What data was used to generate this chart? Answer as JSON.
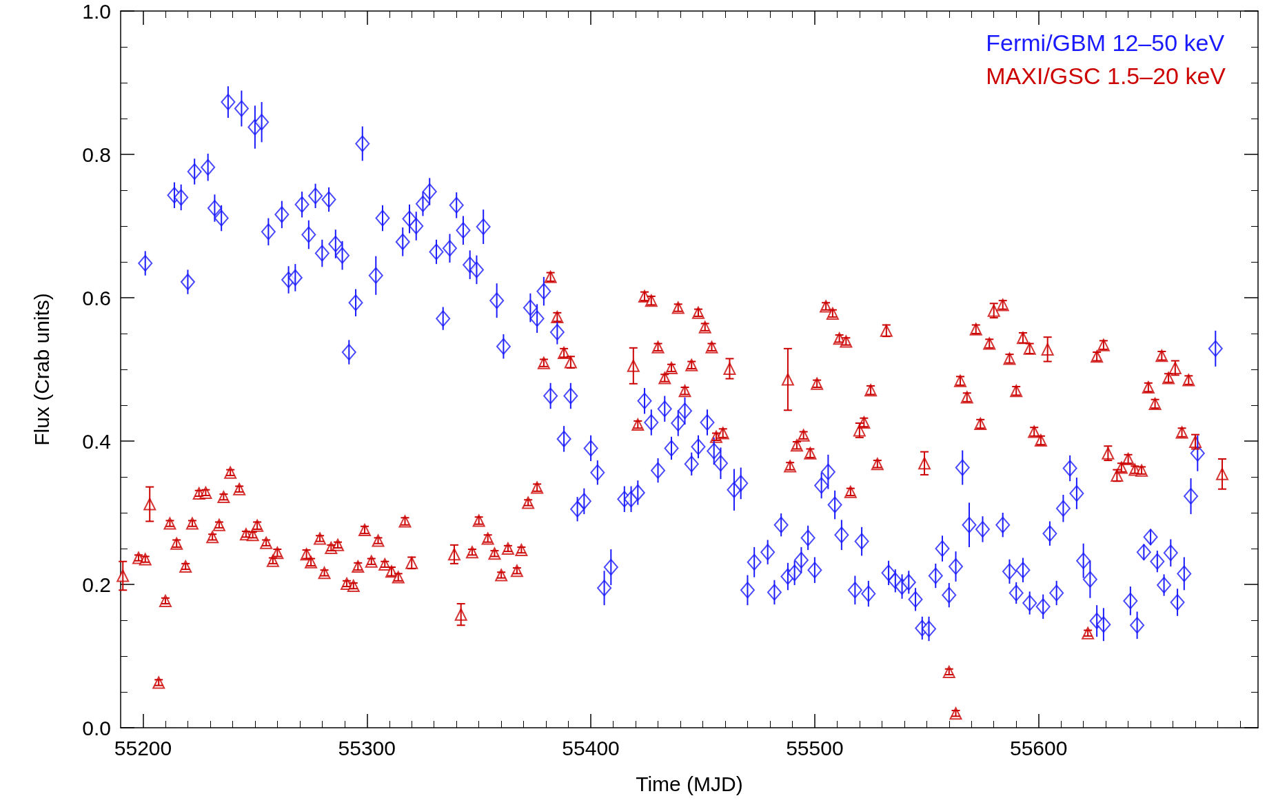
{
  "chart_data": {
    "type": "scatter",
    "xlabel": "Time (MJD)",
    "ylabel": "Flux (Crab units)",
    "xlim": [
      55190,
      55698
    ],
    "xticks": [
      55200,
      55300,
      55400,
      55500,
      55600
    ],
    "ylim": [
      0,
      1
    ],
    "yticks": [
      {
        "value": 0,
        "label": "0.0"
      },
      {
        "value": 0.2,
        "label": "0.2"
      },
      {
        "value": 0.4,
        "label": "0.4"
      },
      {
        "value": 0.6,
        "label": "0.6"
      },
      {
        "value": 0.8,
        "label": "0.8"
      },
      {
        "value": 1,
        "label": "1.0"
      }
    ],
    "grid": false,
    "legend": "top right",
    "series": [
      {
        "name": "Fermi/GBM 12–50 keV",
        "color": "#1a1aff",
        "marker": "diamond",
        "x": [
          55201,
          55214,
          55217,
          55220,
          55223,
          55229,
          55232,
          55235,
          55238,
          55244,
          55250,
          55253,
          55256,
          55262,
          55265,
          55268,
          55271,
          55274,
          55277,
          55280,
          55283,
          55286,
          55289,
          55292,
          55295,
          55298,
          55304,
          55307,
          55316,
          55319,
          55322,
          55325,
          55328,
          55331,
          55334,
          55337,
          55340,
          55343,
          55346,
          55349,
          55352,
          55358,
          55361,
          55373,
          55376,
          55379,
          55382,
          55385,
          55388,
          55391,
          55394,
          55397,
          55400,
          55403,
          55406,
          55409,
          55415,
          55418,
          55421,
          55424,
          55427,
          55430,
          55433,
          55436,
          55439,
          55442,
          55445,
          55448,
          55452,
          55455,
          55458,
          55464,
          55467,
          55470,
          55473,
          55479,
          55482,
          55485,
          55488,
          55491,
          55494,
          55497,
          55500,
          55503,
          55506,
          55509,
          55512,
          55518,
          55521,
          55524,
          55533,
          55536,
          55539,
          55542,
          55545,
          55548,
          55551,
          55554,
          55557,
          55560,
          55563,
          55566,
          55569,
          55575,
          55584,
          55587,
          55590,
          55593,
          55596,
          55602,
          55605,
          55608,
          55611,
          55614,
          55617,
          55620,
          55623,
          55626,
          55629,
          55641,
          55644,
          55647,
          55650,
          55653,
          55656,
          55659,
          55662,
          55665,
          55668,
          55671,
          55679
        ],
        "values": [
          0.648,
          0.743,
          0.74,
          0.622,
          0.776,
          0.782,
          0.725,
          0.711,
          0.873,
          0.864,
          0.838,
          0.845,
          0.692,
          0.716,
          0.625,
          0.628,
          0.73,
          0.688,
          0.742,
          0.662,
          0.737,
          0.675,
          0.659,
          0.524,
          0.593,
          0.815,
          0.631,
          0.711,
          0.678,
          0.71,
          0.7,
          0.731,
          0.748,
          0.664,
          0.571,
          0.669,
          0.729,
          0.694,
          0.646,
          0.639,
          0.699,
          0.596,
          0.532,
          0.586,
          0.571,
          0.609,
          0.463,
          0.552,
          0.403,
          0.463,
          0.305,
          0.316,
          0.39,
          0.356,
          0.195,
          0.224,
          0.319,
          0.319,
          0.328,
          0.456,
          0.426,
          0.359,
          0.445,
          0.39,
          0.425,
          0.442,
          0.368,
          0.392,
          0.426,
          0.386,
          0.369,
          0.332,
          0.341,
          0.192,
          0.231,
          0.245,
          0.189,
          0.283,
          0.211,
          0.216,
          0.234,
          0.265,
          0.22,
          0.338,
          0.357,
          0.311,
          0.269,
          0.192,
          0.26,
          0.187,
          0.216,
          0.205,
          0.197,
          0.203,
          0.179,
          0.139,
          0.138,
          0.212,
          0.25,
          0.185,
          0.225,
          0.363,
          0.283,
          0.277,
          0.283,
          0.218,
          0.188,
          0.22,
          0.174,
          0.169,
          0.271,
          0.188,
          0.306,
          0.362,
          0.327,
          0.233,
          0.207,
          0.149,
          0.144,
          0.177,
          0.143,
          0.245,
          0.266,
          0.232,
          0.199,
          0.244,
          0.175,
          0.215,
          0.323,
          0.383,
          0.529
        ],
        "errors": [
          0.017,
          0.018,
          0.018,
          0.017,
          0.018,
          0.019,
          0.019,
          0.018,
          0.022,
          0.025,
          0.03,
          0.028,
          0.019,
          0.019,
          0.019,
          0.019,
          0.018,
          0.02,
          0.017,
          0.019,
          0.017,
          0.02,
          0.02,
          0.017,
          0.019,
          0.024,
          0.027,
          0.018,
          0.02,
          0.02,
          0.02,
          0.017,
          0.019,
          0.017,
          0.016,
          0.02,
          0.018,
          0.02,
          0.02,
          0.02,
          0.024,
          0.024,
          0.017,
          0.02,
          0.02,
          0.02,
          0.018,
          0.017,
          0.018,
          0.018,
          0.017,
          0.018,
          0.018,
          0.017,
          0.024,
          0.025,
          0.018,
          0.018,
          0.017,
          0.018,
          0.018,
          0.017,
          0.018,
          0.016,
          0.018,
          0.019,
          0.016,
          0.016,
          0.018,
          0.019,
          0.022,
          0.029,
          0.022,
          0.021,
          0.021,
          0.017,
          0.017,
          0.016,
          0.019,
          0.017,
          0.018,
          0.017,
          0.018,
          0.018,
          0.024,
          0.02,
          0.021,
          0.02,
          0.02,
          0.018,
          0.017,
          0.016,
          0.017,
          0.016,
          0.016,
          0.016,
          0.017,
          0.017,
          0.018,
          0.017,
          0.021,
          0.024,
          0.031,
          0.018,
          0.017,
          0.017,
          0.015,
          0.017,
          0.016,
          0.017,
          0.017,
          0.017,
          0.019,
          0.018,
          0.022,
          0.024,
          0.026,
          0.022,
          0.023,
          0.02,
          0.019,
          0.011,
          0.011,
          0.015,
          0.015,
          0.019,
          0.019,
          0.023,
          0.025,
          0.025,
          0.025
        ]
      },
      {
        "name": "MAXI/GSC 1.5–20 keV",
        "color": "#cc0000",
        "marker": "triangle",
        "x": [
          55191,
          55198,
          55201,
          55203,
          55207,
          55210,
          55212,
          55215,
          55219,
          55222,
          55225,
          55228,
          55231,
          55234,
          55236,
          55239,
          55243,
          55246,
          55249,
          55251,
          55255,
          55258,
          55260,
          55273,
          55275,
          55279,
          55281,
          55284,
          55287,
          55291,
          55294,
          55296,
          55299,
          55302,
          55305,
          55308,
          55311,
          55314,
          55317,
          55320,
          55339,
          55342,
          55347,
          55350,
          55354,
          55357,
          55360,
          55363,
          55367,
          55369,
          55372,
          55376,
          55379,
          55382,
          55385,
          55388,
          55391,
          55419,
          55421,
          55424,
          55427,
          55430,
          55433,
          55436,
          55439,
          55442,
          55445,
          55448,
          55451,
          55454,
          55456,
          55459,
          55462,
          55488,
          55489,
          55492,
          55495,
          55498,
          55501,
          55505,
          55508,
          55511,
          55514,
          55516,
          55520,
          55522,
          55525,
          55528,
          55532,
          55549,
          55560,
          55563,
          55565,
          55568,
          55572,
          55574,
          55578,
          55580,
          55584,
          55587,
          55590,
          55593,
          55596,
          55598,
          55601,
          55604,
          55622,
          55626,
          55629,
          55631,
          55635,
          55637,
          55640,
          55643,
          55646,
          55649,
          55652,
          55655,
          55658,
          55661,
          55664,
          55667,
          55670,
          55682
        ],
        "values": [
          0.212,
          0.237,
          0.235,
          0.312,
          0.063,
          0.177,
          0.285,
          0.257,
          0.225,
          0.285,
          0.327,
          0.328,
          0.266,
          0.283,
          0.322,
          0.356,
          0.333,
          0.27,
          0.269,
          0.282,
          0.258,
          0.233,
          0.244,
          0.242,
          0.231,
          0.264,
          0.216,
          0.251,
          0.255,
          0.201,
          0.198,
          0.225,
          0.276,
          0.232,
          0.261,
          0.228,
          0.218,
          0.21,
          0.288,
          0.23,
          0.242,
          0.158,
          0.245,
          0.289,
          0.264,
          0.243,
          0.213,
          0.25,
          0.219,
          0.248,
          0.314,
          0.335,
          0.509,
          0.629,
          0.573,
          0.523,
          0.51,
          0.505,
          0.423,
          0.602,
          0.596,
          0.531,
          0.488,
          0.502,
          0.586,
          0.47,
          0.506,
          0.579,
          0.559,
          0.531,
          0.406,
          0.411,
          0.501,
          0.486,
          0.365,
          0.394,
          0.408,
          0.383,
          0.48,
          0.588,
          0.578,
          0.543,
          0.539,
          0.329,
          0.415,
          0.426,
          0.471,
          0.368,
          0.554,
          0.369,
          0.078,
          0.02,
          0.484,
          0.461,
          0.556,
          0.424,
          0.536,
          0.582,
          0.59,
          0.515,
          0.47,
          0.544,
          0.529,
          0.413,
          0.401,
          0.528,
          0.132,
          0.518,
          0.534,
          0.383,
          0.352,
          0.363,
          0.375,
          0.36,
          0.359,
          0.475,
          0.452,
          0.519,
          0.488,
          0.502,
          0.412,
          0.485,
          0.399,
          0.354
        ],
        "errors": [
          0.02,
          0.004,
          0.004,
          0.024,
          0.004,
          0.004,
          0.004,
          0.005,
          0.004,
          0.004,
          0.004,
          0.004,
          0.004,
          0.004,
          0.004,
          0.004,
          0.004,
          0.004,
          0.004,
          0.005,
          0.004,
          0.004,
          0.005,
          0.006,
          0.005,
          0.004,
          0.004,
          0.004,
          0.004,
          0.004,
          0.004,
          0.005,
          0.005,
          0.004,
          0.004,
          0.004,
          0.006,
          0.005,
          0.005,
          0.008,
          0.013,
          0.015,
          0.004,
          0.005,
          0.005,
          0.004,
          0.004,
          0.004,
          0.004,
          0.004,
          0.004,
          0.005,
          0.005,
          0.006,
          0.006,
          0.006,
          0.008,
          0.025,
          0.005,
          0.006,
          0.006,
          0.005,
          0.005,
          0.005,
          0.005,
          0.005,
          0.005,
          0.005,
          0.005,
          0.005,
          0.005,
          0.006,
          0.014,
          0.043,
          0.005,
          0.005,
          0.005,
          0.006,
          0.005,
          0.005,
          0.005,
          0.005,
          0.005,
          0.005,
          0.01,
          0.006,
          0.006,
          0.005,
          0.008,
          0.016,
          0.004,
          0.004,
          0.006,
          0.006,
          0.006,
          0.006,
          0.006,
          0.01,
          0.006,
          0.006,
          0.006,
          0.007,
          0.007,
          0.006,
          0.006,
          0.017,
          0.004,
          0.006,
          0.006,
          0.01,
          0.008,
          0.006,
          0.006,
          0.005,
          0.005,
          0.006,
          0.006,
          0.006,
          0.006,
          0.01,
          0.006,
          0.006,
          0.01,
          0.021
        ]
      }
    ]
  }
}
